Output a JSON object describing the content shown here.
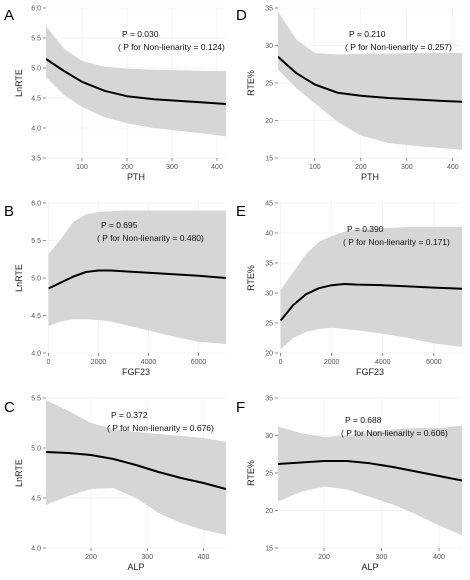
{
  "chart_data": [
    {
      "id": "A",
      "panel_label": "A",
      "type": "line",
      "xlabel": "PTH",
      "ylabel": "LnRTE",
      "xlim": [
        20,
        420
      ],
      "ylim": [
        3.5,
        6.0
      ],
      "xticks": [
        100,
        200,
        300,
        400
      ],
      "yticks": [
        3.5,
        4.0,
        4.5,
        5.0,
        5.5,
        6.0
      ],
      "ytick_labels": [
        "3.5",
        "4.0",
        "4.5",
        "5.0",
        "5.5",
        "6.0"
      ],
      "annotations": [
        "P = 0.030",
        "( P for Non-lienarity = 0.124)"
      ],
      "series": [
        {
          "x": [
            20,
            60,
            100,
            150,
            200,
            260,
            320,
            380,
            420
          ],
          "y": [
            5.15,
            4.95,
            4.77,
            4.62,
            4.53,
            4.48,
            4.45,
            4.42,
            4.4
          ],
          "lower": [
            4.85,
            4.55,
            4.35,
            4.18,
            4.08,
            4.0,
            3.95,
            3.9,
            3.86
          ],
          "upper": [
            5.7,
            5.32,
            5.12,
            5.02,
            4.99,
            4.97,
            4.96,
            4.95,
            4.95
          ]
        }
      ]
    },
    {
      "id": "D",
      "panel_label": "D",
      "type": "line",
      "xlabel": "PTH",
      "ylabel": "RTE%",
      "xlim": [
        20,
        420
      ],
      "ylim": [
        15,
        35
      ],
      "xticks": [
        100,
        200,
        300,
        400
      ],
      "yticks": [
        15,
        20,
        25,
        30,
        35
      ],
      "ytick_labels": [
        "15",
        "20",
        "25",
        "30",
        "35"
      ],
      "annotations": [
        "P = 0.210",
        "( P for Non-lienarity = 0.257)"
      ],
      "series": [
        {
          "x": [
            20,
            60,
            100,
            150,
            200,
            260,
            320,
            380,
            420
          ],
          "y": [
            28.5,
            26.3,
            24.8,
            23.7,
            23.3,
            23.0,
            22.8,
            22.6,
            22.5
          ],
          "lower": [
            26.8,
            24.3,
            22.3,
            19.8,
            18.0,
            17.0,
            16.6,
            16.3,
            16.1
          ],
          "upper": [
            34.5,
            30.8,
            29.0,
            28.8,
            28.9,
            28.9,
            29.0,
            29.0,
            29.0
          ]
        }
      ]
    },
    {
      "id": "B",
      "panel_label": "B",
      "type": "line",
      "xlabel": "FGF23",
      "ylabel": "LnRTE",
      "xlim": [
        -100,
        7100
      ],
      "ylim": [
        4.0,
        6.0
      ],
      "xticks": [
        0,
        2000,
        4000,
        6000
      ],
      "yticks": [
        4.0,
        4.5,
        5.0,
        5.5,
        6.0
      ],
      "ytick_labels": [
        "4.0",
        "4.5",
        "5.0",
        "5.5",
        "6.0"
      ],
      "annotations": [
        "P = 0.695",
        "( P for Non-lienarity = 0.480)"
      ],
      "series": [
        {
          "x": [
            0,
            500,
            1000,
            1500,
            2000,
            2500,
            3000,
            4000,
            5000,
            6000,
            7100
          ],
          "y": [
            4.86,
            4.94,
            5.02,
            5.08,
            5.1,
            5.1,
            5.09,
            5.07,
            5.05,
            5.03,
            5.0
          ],
          "lower": [
            4.36,
            4.42,
            4.45,
            4.45,
            4.44,
            4.42,
            4.38,
            4.3,
            4.22,
            4.15,
            4.12
          ],
          "upper": [
            5.32,
            5.52,
            5.75,
            5.85,
            5.88,
            5.89,
            5.9,
            5.9,
            5.9,
            5.9,
            5.9
          ]
        }
      ]
    },
    {
      "id": "E",
      "panel_label": "E",
      "type": "line",
      "xlabel": "FGF23",
      "ylabel": "RTE%",
      "xlim": [
        -100,
        7100
      ],
      "ylim": [
        20,
        45
      ],
      "xticks": [
        0,
        2000,
        4000,
        6000
      ],
      "yticks": [
        20,
        25,
        30,
        35,
        40,
        45
      ],
      "ytick_labels": [
        "20",
        "25",
        "30",
        "35",
        "40",
        "45"
      ],
      "annotations": [
        "P = 0.390",
        "( P for Non-lienarity = 0.171)"
      ],
      "series": [
        {
          "x": [
            0,
            500,
            1000,
            1500,
            2000,
            2500,
            3000,
            4000,
            5000,
            6000,
            7100
          ],
          "y": [
            25.4,
            28.0,
            29.8,
            30.8,
            31.3,
            31.5,
            31.4,
            31.3,
            31.1,
            30.9,
            30.7
          ],
          "lower": [
            20.6,
            22.5,
            23.5,
            24.0,
            24.2,
            24.0,
            23.8,
            23.2,
            22.5,
            21.6,
            21.0
          ],
          "upper": [
            30.5,
            33.5,
            36.5,
            38.5,
            39.5,
            40.2,
            40.6,
            40.8,
            41.0,
            41.0,
            41.0
          ]
        }
      ]
    },
    {
      "id": "C",
      "panel_label": "C",
      "type": "line",
      "xlabel": "ALP",
      "ylabel": "LnRTE",
      "xlim": [
        120,
        440
      ],
      "ylim": [
        4.0,
        5.5
      ],
      "xticks": [
        200,
        300,
        400
      ],
      "yticks": [
        4.0,
        4.5,
        5.0,
        5.5
      ],
      "ytick_labels": [
        "4.0",
        "4.5",
        "5.0",
        "5.5"
      ],
      "annotations": [
        "P = 0.372",
        "( P for Non-lienarity = 0.676)"
      ],
      "series": [
        {
          "x": [
            120,
            160,
            200,
            240,
            280,
            320,
            360,
            400,
            440
          ],
          "y": [
            4.96,
            4.95,
            4.93,
            4.89,
            4.83,
            4.76,
            4.7,
            4.65,
            4.59
          ],
          "lower": [
            4.43,
            4.52,
            4.59,
            4.6,
            4.5,
            4.35,
            4.25,
            4.18,
            4.13
          ],
          "upper": [
            5.48,
            5.37,
            5.25,
            5.19,
            5.16,
            5.14,
            5.12,
            5.1,
            5.06
          ]
        }
      ]
    },
    {
      "id": "F",
      "panel_label": "F",
      "type": "line",
      "xlabel": "ALP",
      "ylabel": "RTE%",
      "xlim": [
        120,
        440
      ],
      "ylim": [
        15,
        35
      ],
      "xticks": [
        200,
        300,
        400
      ],
      "yticks": [
        15,
        20,
        25,
        30,
        35
      ],
      "ytick_labels": [
        "15",
        "20",
        "25",
        "30",
        "35"
      ],
      "annotations": [
        "P = 0.688",
        "( P for Non-lienarity = 0.606)"
      ],
      "series": [
        {
          "x": [
            120,
            160,
            200,
            240,
            280,
            320,
            360,
            400,
            440
          ],
          "y": [
            26.2,
            26.4,
            26.6,
            26.6,
            26.3,
            25.8,
            25.2,
            24.6,
            24.0
          ],
          "lower": [
            21.2,
            22.5,
            23.2,
            22.8,
            21.8,
            20.8,
            19.5,
            18.0,
            16.7
          ],
          "upper": [
            31.2,
            30.3,
            29.8,
            30.0,
            30.5,
            30.8,
            31.0,
            31.0,
            31.3
          ]
        }
      ]
    }
  ]
}
